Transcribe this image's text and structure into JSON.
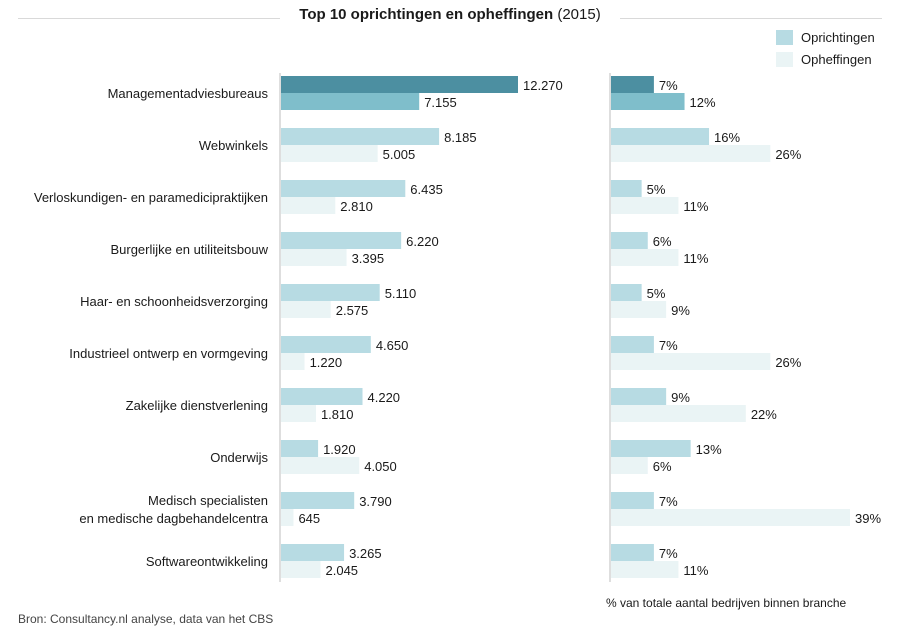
{
  "title": {
    "bold": "Top 10 oprichtingen en opheffingen",
    "suffix": "(2015)"
  },
  "legend": {
    "items": [
      {
        "label": "Oprichtingen",
        "color": "#b7dbe3"
      },
      {
        "label": "Opheffingen",
        "color": "#eaf4f5"
      }
    ]
  },
  "source": "Bron: Consultancy.nl analyse, data van het CBS",
  "pct_note": "% van totale aantal bedrijven binnen branche",
  "colors": {
    "highlight_oprichtingen": "#4c8fa1",
    "highlight_opheffingen": "#7fbecb",
    "oprichtingen": "#b7dbe3",
    "opheffingen": "#eaf4f5",
    "axis": "#bdbdbd"
  },
  "chart_data": [
    {
      "type": "bar",
      "orientation": "horizontal",
      "categories": [
        "Managementadviesbureaus",
        "Webwinkels",
        "Verloskundigen- en paramedicipraktijken",
        "Burgerlijke en utiliteitsbouw",
        "Haar- en schoonheidsverzorging",
        "Industrieel ontwerp en vormgeving",
        "Zakelijke dienstverlening",
        "Onderwijs",
        "Medisch specialisten\nen medische dagbehandelcentra",
        "Softwareontwikkeling"
      ],
      "series": [
        {
          "name": "Oprichtingen",
          "values": [
            12270,
            8185,
            6435,
            6220,
            5110,
            4650,
            4220,
            1920,
            3790,
            3265
          ],
          "labels": [
            "12.270",
            "8.185",
            "6.435",
            "6.220",
            "5.110",
            "4.650",
            "4.220",
            "1.920",
            "3.790",
            "3.265"
          ]
        },
        {
          "name": "Opheffingen",
          "values": [
            7155,
            5005,
            2810,
            3395,
            2575,
            1220,
            1810,
            4050,
            645,
            2045
          ],
          "labels": [
            "7.155",
            "5.005",
            "2.810",
            "3.395",
            "2.575",
            "1.220",
            "1.810",
            "4.050",
            "645",
            "2.045"
          ]
        }
      ],
      "xlim": [
        0,
        12270
      ],
      "highlight_category": 0,
      "grid": false
    },
    {
      "type": "bar",
      "orientation": "horizontal",
      "categories": [
        "Managementadviesbureaus",
        "Webwinkels",
        "Verloskundigen- en paramedicipraktijken",
        "Burgerlijke en utiliteitsbouw",
        "Haar- en schoonheidsverzorging",
        "Industrieel ontwerp en vormgeving",
        "Zakelijke dienstverlening",
        "Onderwijs",
        "Medisch specialisten\nen medische dagbehandelcentra",
        "Softwareontwikkeling"
      ],
      "series": [
        {
          "name": "Oprichtingen",
          "values": [
            7,
            16,
            5,
            6,
            5,
            7,
            9,
            13,
            7,
            7
          ],
          "labels": [
            "7%",
            "16%",
            "5%",
            "6%",
            "5%",
            "7%",
            "9%",
            "13%",
            "7%",
            "7%"
          ]
        },
        {
          "name": "Opheffingen",
          "values": [
            12,
            26,
            11,
            11,
            9,
            26,
            22,
            6,
            39,
            11
          ],
          "labels": [
            "12%",
            "26%",
            "11%",
            "11%",
            "9%",
            "26%",
            "22%",
            "6%",
            "39%",
            "11%"
          ]
        }
      ],
      "xlabel": "% van totale aantal bedrijven binnen branche",
      "xlim": [
        0,
        39
      ],
      "highlight_category": 0,
      "grid": false
    }
  ]
}
